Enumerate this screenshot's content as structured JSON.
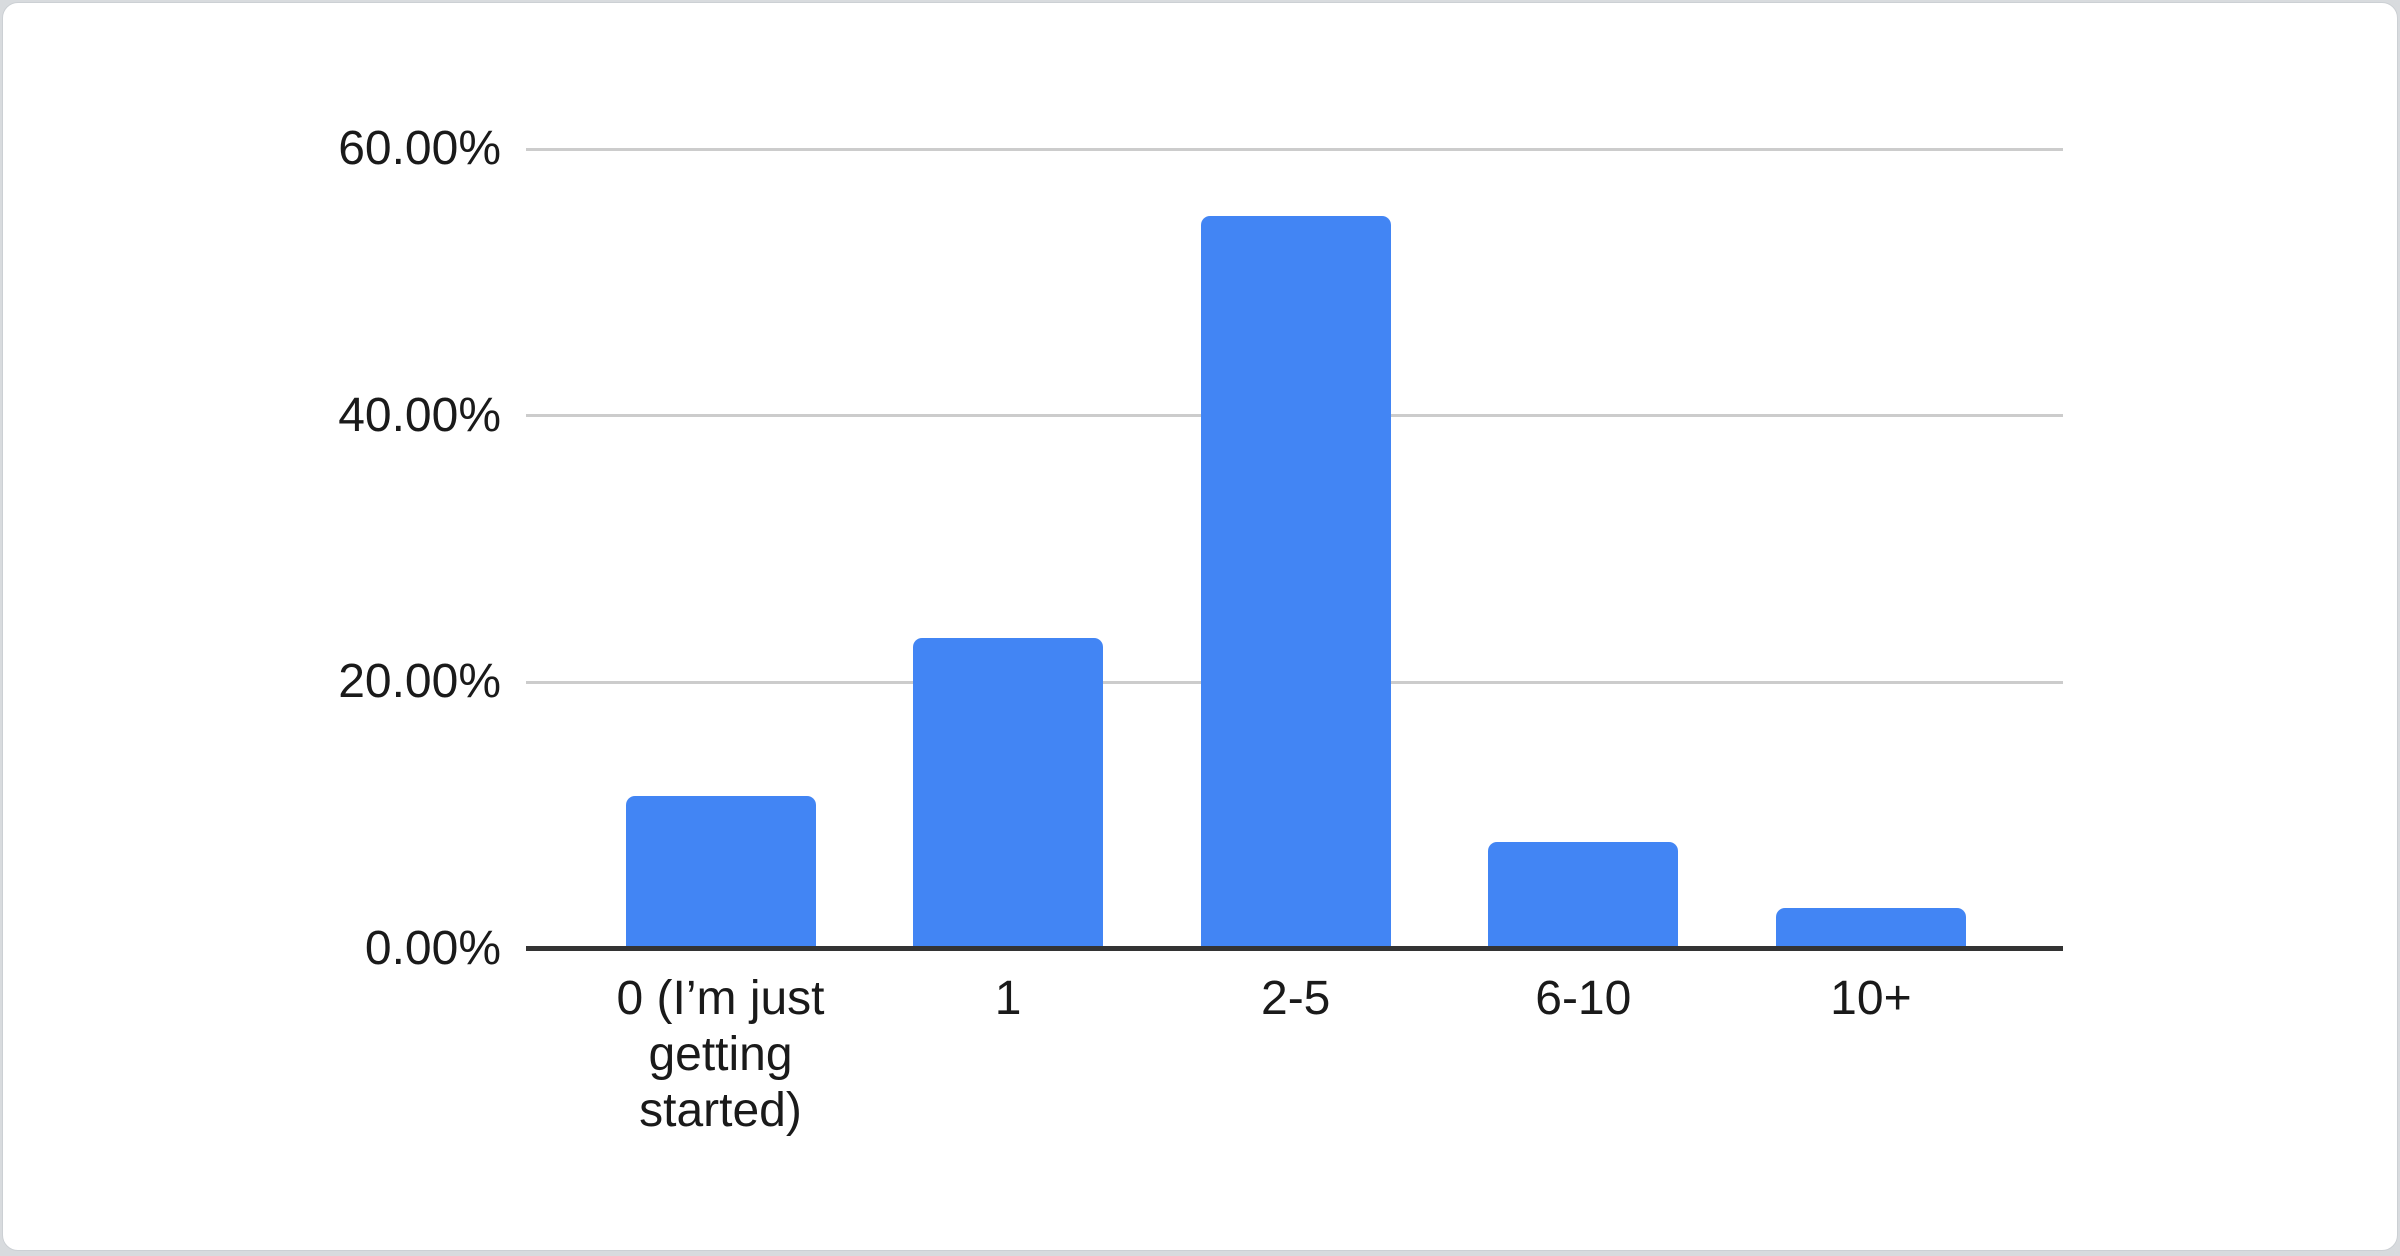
{
  "colors": {
    "bar": "#4285f4",
    "gridline": "#cccccc",
    "axis_line": "#333333",
    "label_text": "#1a1a1a",
    "card_background": "#ffffff",
    "page_edge": "#d8dbde"
  },
  "chart_data": {
    "type": "bar",
    "title": "",
    "xlabel": "",
    "ylabel": "",
    "categories": [
      "0 (I’m just getting started)",
      "1",
      "2-5",
      "6-10",
      "10+"
    ],
    "values": [
      11.5,
      23.3,
      55.0,
      8.0,
      3.1
    ],
    "value_unit": "%",
    "ylim": [
      0,
      60
    ],
    "y_ticks": [
      {
        "label": "60.00%",
        "value": 60
      },
      {
        "label": "40.00%",
        "value": 40
      },
      {
        "label": "20.00%",
        "value": 20
      },
      {
        "label": "0.00%",
        "value": 0
      }
    ],
    "grid": true,
    "legend": "none",
    "bar_color": "#4285f4"
  }
}
